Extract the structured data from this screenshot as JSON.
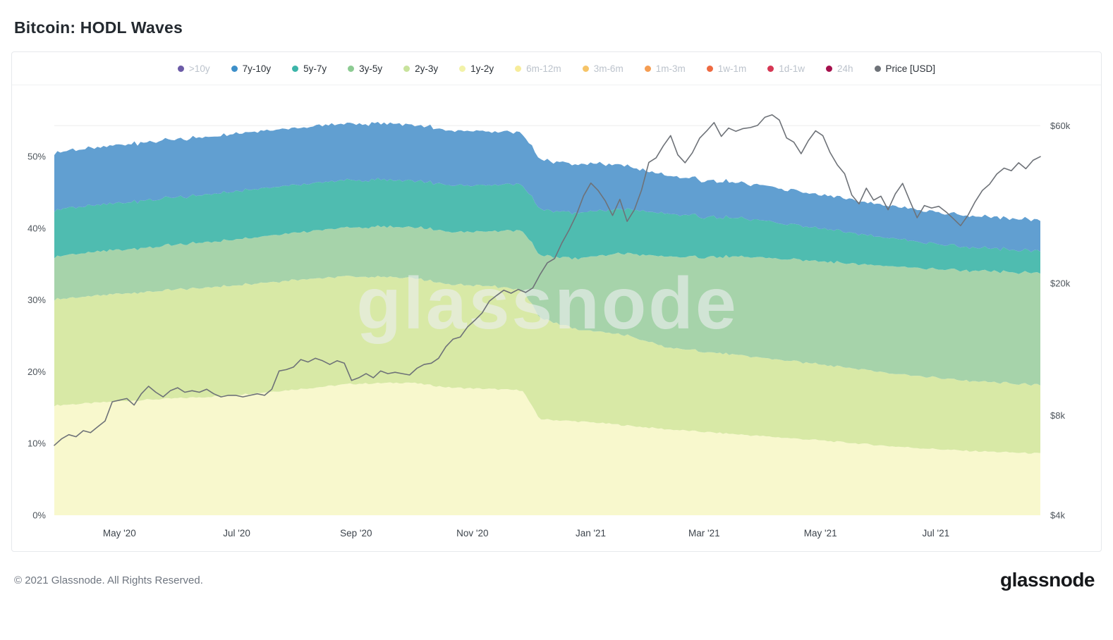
{
  "title": "Bitcoin: HODL Waves",
  "footer": {
    "copyright": "© 2021 Glassnode. All Rights Reserved.",
    "logo": "glassnode"
  },
  "chart_data": {
    "type": "area",
    "subtype": "stacked-percent-hodl-waves-with-price-overlay",
    "title": "Bitcoin: HODL Waves",
    "watermark": "glassnode",
    "watermark_pct": 26,
    "legend": [
      {
        "label": ">10y",
        "color": "#6c5ba7",
        "active": false
      },
      {
        "label": "7y-10y",
        "color": "#3d8fc9",
        "active": true
      },
      {
        "label": "5y-7y",
        "color": "#3cb5a9",
        "active": true
      },
      {
        "label": "3y-5y",
        "color": "#8ccb92",
        "active": true
      },
      {
        "label": "2y-3y",
        "color": "#c8e39c",
        "active": true
      },
      {
        "label": "1y-2y",
        "color": "#f2f2a8",
        "active": true
      },
      {
        "label": "6m-12m",
        "color": "#f7ec9a",
        "active": false
      },
      {
        "label": "3m-6m",
        "color": "#f6c468",
        "active": false
      },
      {
        "label": "1m-3m",
        "color": "#f59d52",
        "active": false
      },
      {
        "label": "1w-1m",
        "color": "#ee6a41",
        "active": false
      },
      {
        "label": "1d-1w",
        "color": "#d63754",
        "active": false
      },
      {
        "label": "24h",
        "color": "#a5104c",
        "active": false
      },
      {
        "label": "Price [USD]",
        "color": "#6e7278",
        "active": true
      }
    ],
    "y_left": {
      "max_pct": 56,
      "ticks": [
        {
          "label": "0%",
          "pct": 0
        },
        {
          "label": "10%",
          "pct": 10
        },
        {
          "label": "20%",
          "pct": 20
        },
        {
          "label": "30%",
          "pct": 30
        },
        {
          "label": "40%",
          "pct": 40
        },
        {
          "label": "50%",
          "pct": 50
        }
      ]
    },
    "y_right": {
      "scale": "log",
      "pct_per_decade": 46.2,
      "ticks": [
        {
          "label": "$4k",
          "pct": 0
        },
        {
          "label": "$8k",
          "pct": 13.9
        },
        {
          "label": "$20k",
          "pct": 32.3
        },
        {
          "label": "$60k",
          "pct": 54.3
        }
      ]
    },
    "x_axis": {
      "start": "2020-03-28",
      "end": "2021-08-24",
      "ticks": [
        {
          "label": "May '20",
          "t": 0.066
        },
        {
          "label": "Jul '20",
          "t": 0.185
        },
        {
          "label": "Sep '20",
          "t": 0.306
        },
        {
          "label": "Nov '20",
          "t": 0.424
        },
        {
          "label": "Jan '21",
          "t": 0.544
        },
        {
          "label": "Mar '21",
          "t": 0.659
        },
        {
          "label": "May '21",
          "t": 0.777
        },
        {
          "label": "Jul '21",
          "t": 0.894
        }
      ]
    },
    "bands": [
      {
        "name": "1y-2y",
        "color": "#f8f8cd",
        "points": [
          [
            0,
            15.3
          ],
          [
            0.08,
            16.0
          ],
          [
            0.17,
            16.6
          ],
          [
            0.25,
            17.6
          ],
          [
            0.3,
            18.3
          ],
          [
            0.36,
            18.5
          ],
          [
            0.4,
            17.8
          ],
          [
            0.44,
            17.6
          ],
          [
            0.475,
            17.4
          ],
          [
            0.492,
            13.4
          ],
          [
            0.55,
            12.9
          ],
          [
            0.62,
            12.0
          ],
          [
            0.7,
            11.2
          ],
          [
            0.78,
            10.4
          ],
          [
            0.85,
            9.6
          ],
          [
            0.92,
            9.0
          ],
          [
            1,
            8.6
          ]
        ]
      },
      {
        "name": "2y-3y",
        "color": "#d8e9a6",
        "points": [
          [
            0,
            14.8
          ],
          [
            0.08,
            15.0
          ],
          [
            0.17,
            15.3
          ],
          [
            0.25,
            15.3
          ],
          [
            0.3,
            15.0
          ],
          [
            0.36,
            14.6
          ],
          [
            0.4,
            14.4
          ],
          [
            0.44,
            14.4
          ],
          [
            0.475,
            14.0
          ],
          [
            0.492,
            14.2
          ],
          [
            0.53,
            12.8
          ],
          [
            0.58,
            12.6
          ],
          [
            0.62,
            11.4
          ],
          [
            0.7,
            11.0
          ],
          [
            0.78,
            10.6
          ],
          [
            0.85,
            10.2
          ],
          [
            0.92,
            9.8
          ],
          [
            1,
            9.5
          ]
        ]
      },
      {
        "name": "3y-5y",
        "color": "#a6d3aa",
        "points": [
          [
            0,
            6.0
          ],
          [
            0.1,
            6.2
          ],
          [
            0.2,
            6.4
          ],
          [
            0.3,
            6.8
          ],
          [
            0.36,
            7.1
          ],
          [
            0.44,
            7.6
          ],
          [
            0.49,
            8.6
          ],
          [
            0.55,
            10.5
          ],
          [
            0.62,
            12.6
          ],
          [
            0.7,
            13.8
          ],
          [
            0.78,
            14.4
          ],
          [
            0.85,
            14.9
          ],
          [
            0.92,
            15.3
          ],
          [
            1,
            15.6
          ]
        ]
      },
      {
        "name": "5y-7y",
        "color": "#4fbcb0",
        "points": [
          [
            0,
            6.5
          ],
          [
            0.1,
            6.6
          ],
          [
            0.2,
            6.7
          ],
          [
            0.3,
            6.6
          ],
          [
            0.36,
            6.5
          ],
          [
            0.44,
            6.4
          ],
          [
            0.49,
            6.4
          ],
          [
            0.55,
            6.3
          ],
          [
            0.62,
            6.0
          ],
          [
            0.7,
            5.3
          ],
          [
            0.78,
            4.6
          ],
          [
            0.85,
            3.9
          ],
          [
            0.92,
            3.3
          ],
          [
            1,
            3.0
          ]
        ]
      },
      {
        "name": "7y-10y",
        "color": "#619fd1",
        "points": [
          [
            0,
            8.0
          ],
          [
            0.1,
            8.1
          ],
          [
            0.2,
            8.0
          ],
          [
            0.3,
            7.9
          ],
          [
            0.36,
            7.8
          ],
          [
            0.44,
            7.5
          ],
          [
            0.49,
            7.0
          ],
          [
            0.55,
            6.6
          ],
          [
            0.62,
            5.3
          ],
          [
            0.7,
            4.9
          ],
          [
            0.78,
            4.7
          ],
          [
            0.85,
            4.5
          ],
          [
            0.92,
            4.4
          ],
          [
            1,
            4.3
          ]
        ]
      }
    ],
    "price": {
      "name": "Price [USD]",
      "color": "#6e7278",
      "unit": "USD thousands, log scale",
      "values_k": [
        6.5,
        6.8,
        7.0,
        6.9,
        7.2,
        7.1,
        7.4,
        7.7,
        8.8,
        8.9,
        9.0,
        8.6,
        9.3,
        9.8,
        9.4,
        9.1,
        9.5,
        9.7,
        9.4,
        9.5,
        9.4,
        9.6,
        9.3,
        9.1,
        9.2,
        9.2,
        9.1,
        9.2,
        9.3,
        9.2,
        9.6,
        10.9,
        11.0,
        11.2,
        11.8,
        11.6,
        11.9,
        11.7,
        11.4,
        11.7,
        11.5,
        10.2,
        10.4,
        10.7,
        10.4,
        10.9,
        10.7,
        10.8,
        10.7,
        10.6,
        11.1,
        11.4,
        11.5,
        11.9,
        12.9,
        13.6,
        13.8,
        14.8,
        15.5,
        16.3,
        17.7,
        18.4,
        19.1,
        18.7,
        19.2,
        18.8,
        19.4,
        21.3,
        23.1,
        23.8,
        26.5,
        29.0,
        32.2,
        36.8,
        40.2,
        38.2,
        35.5,
        32.1,
        35.9,
        30.8,
        33.4,
        38.3,
        46.4,
        47.9,
        52.1,
        55.9,
        48.9,
        46.3,
        49.6,
        54.9,
        57.8,
        61.2,
        55.6,
        58.9,
        57.6,
        58.7,
        59.1,
        60.0,
        63.5,
        64.6,
        62.3,
        55.0,
        53.4,
        49.3,
        54.0,
        57.8,
        55.9,
        49.7,
        45.6,
        42.9,
        37.0,
        34.8,
        38.8,
        35.7,
        36.7,
        33.4,
        37.3,
        40.1,
        35.5,
        31.6,
        34.4,
        33.8,
        34.2,
        32.9,
        31.4,
        29.9,
        32.1,
        35.3,
        38.2,
        39.9,
        42.8,
        44.6,
        43.8,
        46.3,
        44.4,
        47.1,
        48.3
      ]
    }
  }
}
